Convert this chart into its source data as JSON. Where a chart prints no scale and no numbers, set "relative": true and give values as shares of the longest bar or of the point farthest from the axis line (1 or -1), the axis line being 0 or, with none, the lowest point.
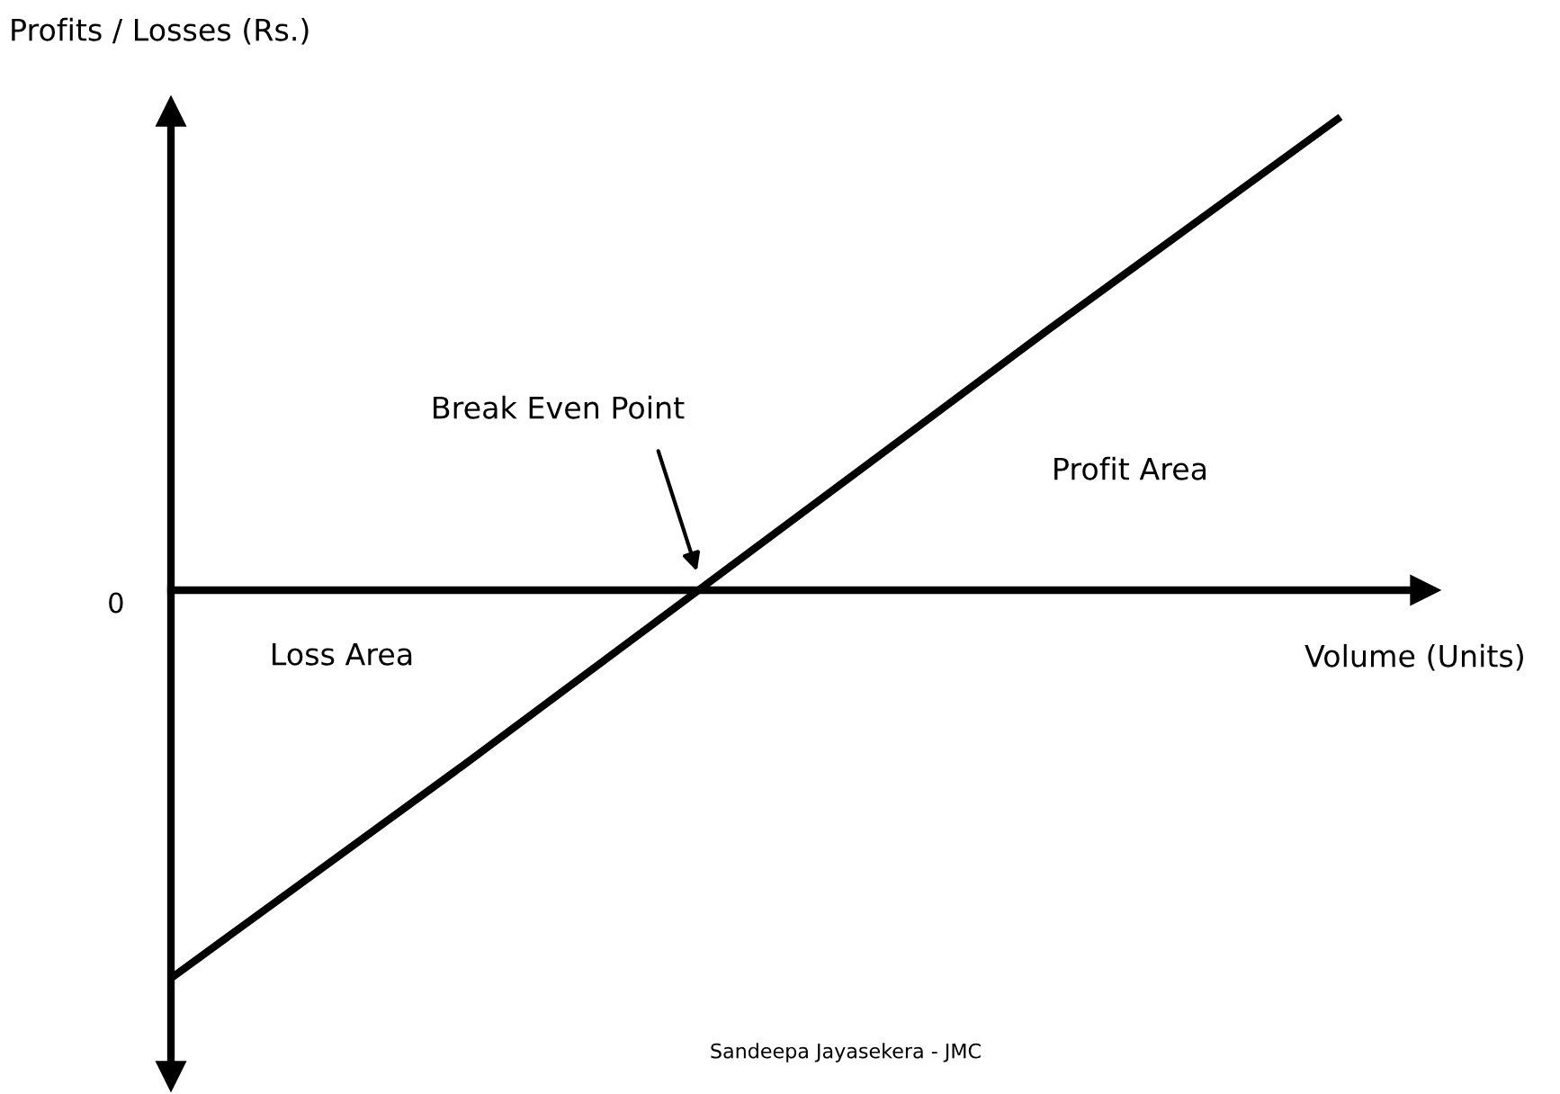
{
  "chart_data": {
    "type": "line",
    "relative": true,
    "ylabel": "Profits / Losses (Rs.)",
    "xlabel": "Volume (Units)",
    "categories": [
      null,
      null,
      null,
      null,
      null
    ],
    "series": [
      {
        "color": "#000000",
        "values": [
          -0.82,
          -0.37,
          0.09,
          0.55,
          1
        ]
      }
    ],
    "annotations": [
      "0",
      "Break Even Point",
      "Profit Area",
      "Loss Area",
      "Sandeepa Jayasekera - JMC"
    ]
  }
}
